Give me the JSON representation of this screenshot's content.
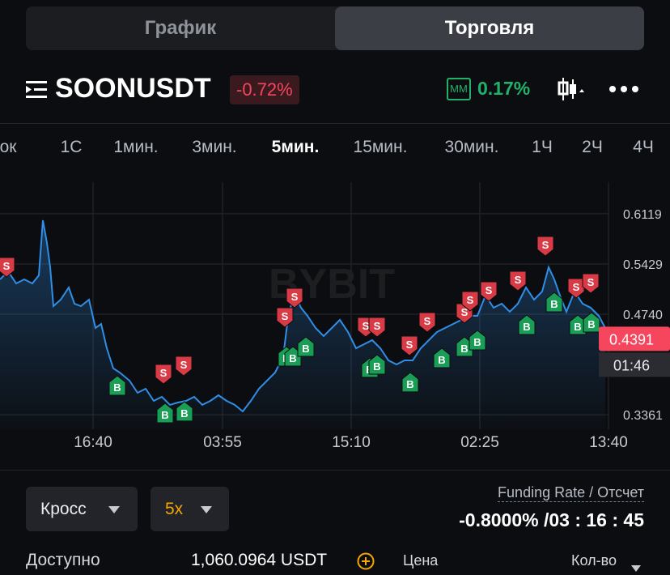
{
  "tabs": [
    "График",
    "Торговля"
  ],
  "header": {
    "symbol": "SOONUSDT",
    "change": "-0.72%",
    "mm_label": "MM",
    "mm_value": "0.17%"
  },
  "timeframes": [
    "ок",
    "1С",
    "1мин.",
    "3мин.",
    "5мин.",
    "15мин.",
    "30мин.",
    "1Ч",
    "2Ч",
    "4Ч"
  ],
  "chart_data": {
    "type": "line",
    "color": "#2f8fe8",
    "watermark": "BYBIT",
    "x": [
      0,
      10,
      20,
      30,
      40,
      48,
      53,
      58,
      62,
      66,
      75,
      85,
      92,
      100,
      110,
      118,
      125,
      132,
      140,
      148,
      160,
      170,
      180,
      190,
      200,
      210,
      220,
      230,
      240,
      250,
      260,
      270,
      280,
      290,
      300,
      310,
      320,
      330,
      340,
      350,
      355,
      360,
      365,
      372,
      380,
      390,
      400,
      410,
      420,
      430,
      440,
      450,
      460,
      470,
      480,
      490,
      500,
      510,
      520,
      530,
      540,
      550,
      560,
      570,
      580,
      590,
      600,
      610,
      620,
      630,
      640,
      650,
      660,
      670,
      678,
      685,
      692,
      700,
      710,
      720,
      730,
      740,
      748
    ],
    "values": [
      0.5218,
      0.5329,
      0.5162,
      0.5218,
      0.5162,
      0.5273,
      0.6029,
      0.5718,
      0.5384,
      0.4851,
      0.494,
      0.5107,
      0.4884,
      0.4851,
      0.494,
      0.4551,
      0.4607,
      0.4273,
      0.3996,
      0.394,
      0.3829,
      0.3662,
      0.3718,
      0.3551,
      0.3607,
      0.3496,
      0.3529,
      0.3551,
      0.3607,
      0.3496,
      0.3551,
      0.3629,
      0.3551,
      0.3496,
      0.3407,
      0.3551,
      0.3718,
      0.3829,
      0.394,
      0.4162,
      0.4607,
      0.4884,
      0.4996,
      0.4829,
      0.4718,
      0.4551,
      0.444,
      0.4551,
      0.4662,
      0.4496,
      0.4273,
      0.4329,
      0.4384,
      0.4273,
      0.4107,
      0.4051,
      0.4107,
      0.4107,
      0.4273,
      0.4384,
      0.4496,
      0.4551,
      0.4607,
      0.4662,
      0.4718,
      0.4718,
      0.4996,
      0.4829,
      0.4884,
      0.4773,
      0.4884,
      0.5107,
      0.494,
      0.5051,
      0.5384,
      0.5218,
      0.4996,
      0.4773,
      0.5051,
      0.4884,
      0.4829,
      0.4718,
      0.4551
    ],
    "xlim": [
      0,
      752
    ],
    "ylim": [
      0.3162,
      0.6551
    ],
    "xticks": [
      {
        "value": 115,
        "label": "16:40"
      },
      {
        "value": 275,
        "label": "03:55"
      },
      {
        "value": 434,
        "label": "15:10"
      },
      {
        "value": 593,
        "label": "02:25"
      },
      {
        "value": 752,
        "label": "13:40"
      }
    ],
    "yticks": [
      0.3361,
      {
        "value": 0.474,
        "label": "0.4740"
      },
      0.5429,
      0.6119
    ],
    "grid": true,
    "markers": [
      {
        "label": "B",
        "x": 145,
        "value": 0.374
      },
      {
        "label": "B",
        "x": 204,
        "value": 0.3362
      },
      {
        "label": "B",
        "x": 228,
        "value": 0.3385
      },
      {
        "label": "B",
        "x": 354,
        "value": 0.414
      },
      {
        "label": "B",
        "x": 362,
        "value": 0.414
      },
      {
        "label": "B",
        "x": 378,
        "value": 0.4273
      },
      {
        "label": "B",
        "x": 457,
        "value": 0.3985
      },
      {
        "label": "B",
        "x": 466,
        "value": 0.4029
      },
      {
        "label": "B",
        "x": 507,
        "value": 0.3785
      },
      {
        "label": "B",
        "x": 546,
        "value": 0.4118
      },
      {
        "label": "B",
        "x": 574,
        "value": 0.4273
      },
      {
        "label": "B",
        "x": 590,
        "value": 0.4362
      },
      {
        "label": "B",
        "x": 651,
        "value": 0.4573
      },
      {
        "label": "B",
        "x": 685,
        "value": 0.4884
      },
      {
        "label": "B",
        "x": 714,
        "value": 0.4573
      },
      {
        "label": "B",
        "x": 731,
        "value": 0.4607
      },
      {
        "label": "S",
        "x": 8,
        "value": 0.5407
      },
      {
        "label": "S",
        "x": 202,
        "value": 0.394
      },
      {
        "label": "S",
        "x": 227,
        "value": 0.4051
      },
      {
        "label": "S",
        "x": 352,
        "value": 0.4718
      },
      {
        "label": "S",
        "x": 364,
        "value": 0.4984
      },
      {
        "label": "S",
        "x": 452,
        "value": 0.4584
      },
      {
        "label": "S",
        "x": 466,
        "value": 0.4584
      },
      {
        "label": "S",
        "x": 506,
        "value": 0.4329
      },
      {
        "label": "S",
        "x": 528,
        "value": 0.4651
      },
      {
        "label": "S",
        "x": 574,
        "value": 0.4773
      },
      {
        "label": "S",
        "x": 581,
        "value": 0.494
      },
      {
        "label": "S",
        "x": 604,
        "value": 0.5073
      },
      {
        "label": "S",
        "x": 640,
        "value": 0.5218
      },
      {
        "label": "S",
        "x": 674,
        "value": 0.5695
      },
      {
        "label": "S",
        "x": 712,
        "value": 0.5118
      },
      {
        "label": "S",
        "x": 730,
        "value": 0.5184
      }
    ],
    "last_price": 0.4391,
    "countdown": "01:46"
  },
  "controls": {
    "margin_mode": "Кросс",
    "leverage": "5x",
    "funding_label": "Funding Rate / Отсчет",
    "funding_value": "-0.8000% /03 : 16 : 45"
  },
  "footer": {
    "available_label": "Доступно",
    "available_value": "1,060.0964 USDT",
    "price_label": "Цена",
    "qty_label": "Кол-во"
  }
}
